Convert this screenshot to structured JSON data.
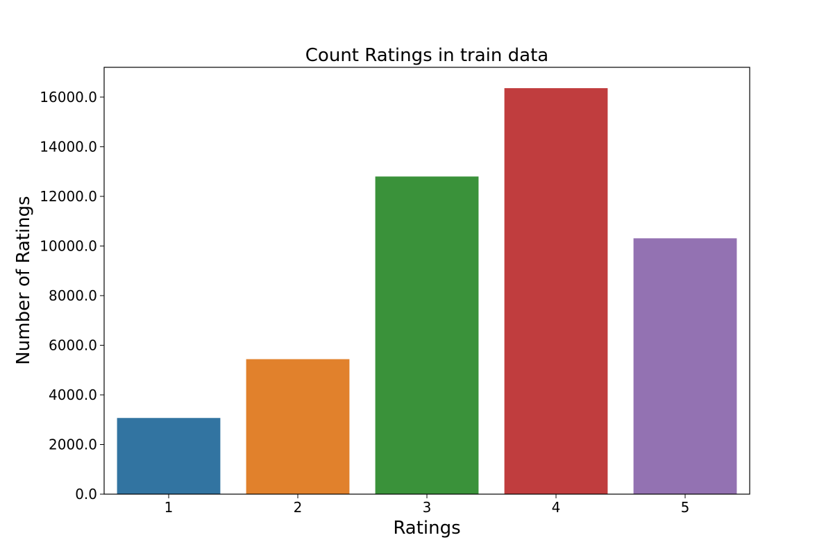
{
  "chart_data": {
    "type": "bar",
    "title": "Count Ratings in train data",
    "xlabel": "Ratings",
    "ylabel": "Number of Ratings",
    "categories": [
      "1",
      "2",
      "3",
      "4",
      "5"
    ],
    "values": [
      3070,
      5440,
      12800,
      16360,
      10310
    ],
    "colors": [
      "#3274a1",
      "#e1812c",
      "#3a923a",
      "#c03d3e",
      "#9372b2"
    ],
    "ylim": [
      0,
      17200
    ],
    "yticks": [
      0,
      2000,
      4000,
      6000,
      8000,
      10000,
      12000,
      14000,
      16000
    ],
    "ytick_labels": [
      "0.0",
      "2000.0",
      "4000.0",
      "6000.0",
      "8000.0",
      "10000.0",
      "12000.0",
      "14000.0",
      "16000.0"
    ],
    "grid": false,
    "legend": "none"
  }
}
